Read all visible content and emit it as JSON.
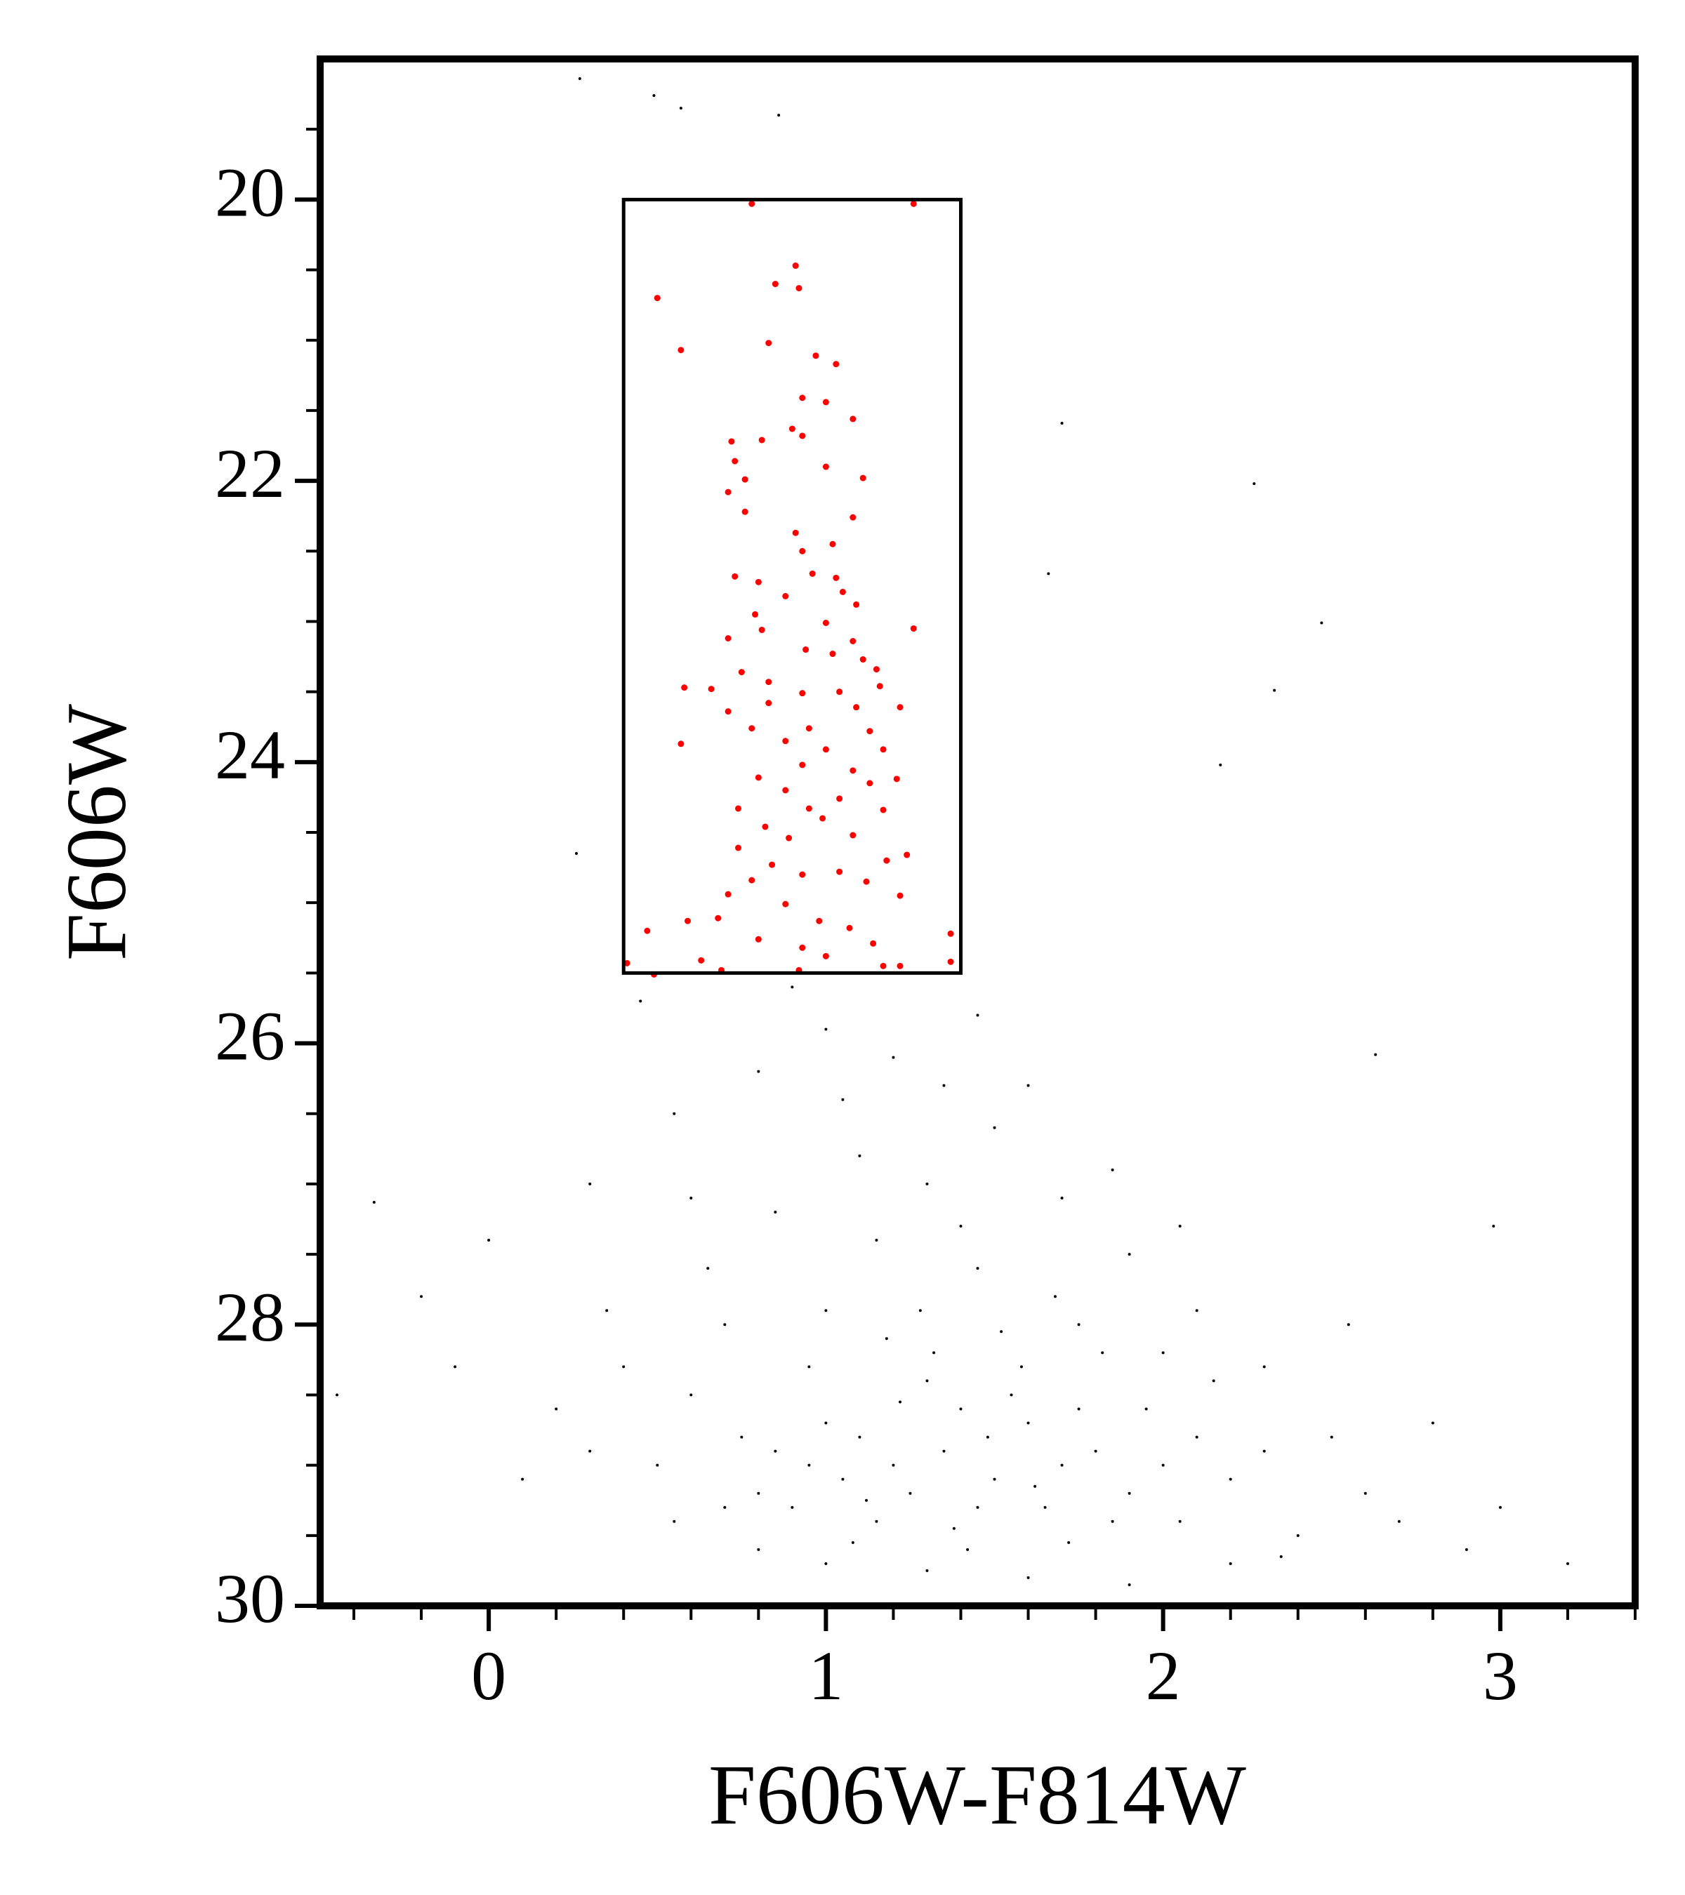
{
  "chart_data": {
    "type": "scatter",
    "xlabel": "F606W-F814W",
    "ylabel": "F606W",
    "xlim": [
      -0.5,
      3.4
    ],
    "ylim": [
      30,
      19
    ],
    "xticks": [
      0,
      1,
      2,
      3
    ],
    "yticks": [
      20,
      22,
      24,
      26,
      28,
      30
    ],
    "xminorticks": [
      -0.4,
      -0.2,
      0.2,
      0.4,
      0.6,
      0.8,
      1.2,
      1.4,
      1.6,
      1.8,
      2.2,
      2.4,
      2.6,
      2.8,
      3.2,
      3.4
    ],
    "yminorticks": [
      19.5,
      20.5,
      21,
      21.5,
      22.5,
      23,
      23.5,
      24.5,
      25,
      25.5,
      26.5,
      27,
      27.5,
      28.5,
      29,
      29.5
    ],
    "box": {
      "x": [
        0.4,
        1.4
      ],
      "y": [
        20,
        25.5
      ],
      "color": "#000000"
    },
    "series": [
      {
        "color": "#000000",
        "x": [
          1.2,
          1.35,
          1.5,
          1.1,
          1.6,
          1.45,
          1.25,
          1.7,
          1.05,
          1.4,
          1.8,
          1.3,
          1.55,
          0.95,
          1.65,
          1.15,
          1.9,
          1.0,
          1.75,
          1.38,
          0.9,
          2.0,
          1.22,
          1.48,
          1.62,
          2.1,
          0.85,
          1.12,
          1.85,
          1.32,
          1.58,
          2.2,
          0.8,
          1.95,
          1.42,
          1.08,
          1.72,
          2.05,
          0.75,
          1.28,
          1.52,
          1.82,
          2.3,
          0.7,
          1.18,
          1.68,
          2.15,
          0.95,
          1.45,
          1.0,
          0.6,
          0.5,
          0.4,
          0.65,
          0.85,
          1.1,
          1.3,
          1.5,
          1.7,
          1.9,
          2.1,
          2.3,
          2.5,
          2.6,
          2.4,
          2.7,
          2.9,
          3.0,
          3.2,
          2.2,
          1.9,
          1.6,
          1.3,
          1.0,
          0.8,
          0.55,
          0.3,
          0.2,
          0.1,
          -0.1,
          -0.2,
          -0.45,
          0.0,
          0.3,
          0.55,
          0.8,
          1.0,
          1.2,
          1.45,
          1.6,
          1.85,
          2.05,
          0.45,
          0.9,
          2.8,
          2.55,
          0.7,
          1.15,
          1.4,
          1.75,
          2.0,
          0.6,
          0.35,
          2.35,
          1.35,
          1.05,
          0.27,
          0.49,
          0.57,
          0.86,
          1.7,
          2.27,
          1.66,
          2.47,
          2.33,
          2.17,
          0.26,
          2.63,
          2.98,
          -0.34
        ],
        "values": [
          29.0,
          28.9,
          29.1,
          28.8,
          28.7,
          29.3,
          29.2,
          29.0,
          29.1,
          28.6,
          28.9,
          28.4,
          28.5,
          29.0,
          29.3,
          29.4,
          29.2,
          28.7,
          28.6,
          29.45,
          29.3,
          29.0,
          28.55,
          28.8,
          29.15,
          28.8,
          28.9,
          29.25,
          29.4,
          28.2,
          28.3,
          29.1,
          29.2,
          28.6,
          29.6,
          29.55,
          29.55,
          29.4,
          28.8,
          27.9,
          28.05,
          28.2,
          28.9,
          29.3,
          28.1,
          27.8,
          28.4,
          28.3,
          27.6,
          27.9,
          28.5,
          29.0,
          28.3,
          27.6,
          27.2,
          26.8,
          27.0,
          26.6,
          27.1,
          27.5,
          27.9,
          28.3,
          28.8,
          29.2,
          29.5,
          29.4,
          29.6,
          29.3,
          29.7,
          29.7,
          29.85,
          29.8,
          29.75,
          29.7,
          29.6,
          29.4,
          28.9,
          28.6,
          29.1,
          28.3,
          27.8,
          28.5,
          27.4,
          27.0,
          26.5,
          26.2,
          25.9,
          26.1,
          25.8,
          26.3,
          26.9,
          27.3,
          25.7,
          25.6,
          28.7,
          28.0,
          28.0,
          27.4,
          27.3,
          28.0,
          28.2,
          27.1,
          27.9,
          29.65,
          26.3,
          26.4,
          19.14,
          19.26,
          19.35,
          19.4,
          21.59,
          22.02,
          22.66,
          23.01,
          23.49,
          24.02,
          24.65,
          26.08,
          27.3,
          27.13
        ]
      },
      {
        "color": "#ff0000",
        "x": [
          0.78,
          1.26,
          0.91,
          0.85,
          0.92,
          0.5,
          0.57,
          0.83,
          0.97,
          1.03,
          0.93,
          1.0,
          1.08,
          0.9,
          0.72,
          0.81,
          0.93,
          0.73,
          1.0,
          0.76,
          0.71,
          1.11,
          0.76,
          1.08,
          0.91,
          1.02,
          0.93,
          0.73,
          0.96,
          1.03,
          0.8,
          1.05,
          0.88,
          1.09,
          0.79,
          1.26,
          1.0,
          0.81,
          0.71,
          1.08,
          1.02,
          0.94,
          1.11,
          1.15,
          0.75,
          0.83,
          0.58,
          0.66,
          1.16,
          1.04,
          0.93,
          1.09,
          1.22,
          0.71,
          0.83,
          0.78,
          0.95,
          1.13,
          0.57,
          0.88,
          1.0,
          1.17,
          0.93,
          1.08,
          0.8,
          1.21,
          1.13,
          0.88,
          1.04,
          0.74,
          0.95,
          1.17,
          0.99,
          0.82,
          1.08,
          0.89,
          0.74,
          1.24,
          1.18,
          0.84,
          1.04,
          0.93,
          0.78,
          1.12,
          1.22,
          0.71,
          0.88,
          0.98,
          1.07,
          0.68,
          0.59,
          0.47,
          0.8,
          0.93,
          1.14,
          1.0,
          0.41,
          0.63,
          1.37,
          1.37,
          1.17,
          1.22,
          0.49,
          0.69,
          0.92
        ],
        "values": [
          20.03,
          20.03,
          20.47,
          20.6,
          20.63,
          20.7,
          21.07,
          21.02,
          21.11,
          21.17,
          21.41,
          21.44,
          21.56,
          21.63,
          21.72,
          21.71,
          21.68,
          21.86,
          21.9,
          21.99,
          22.08,
          21.98,
          22.22,
          22.26,
          22.37,
          22.45,
          22.5,
          22.68,
          22.66,
          22.69,
          22.72,
          22.79,
          22.82,
          22.88,
          22.95,
          23.05,
          23.01,
          23.06,
          23.12,
          23.14,
          23.23,
          23.2,
          23.27,
          23.34,
          23.36,
          23.43,
          23.47,
          23.48,
          23.46,
          23.5,
          23.51,
          23.61,
          23.61,
          23.64,
          23.58,
          23.76,
          23.76,
          23.78,
          23.87,
          23.85,
          23.91,
          23.91,
          24.02,
          24.06,
          24.11,
          24.12,
          24.15,
          24.2,
          24.26,
          24.33,
          24.33,
          24.34,
          24.4,
          24.46,
          24.52,
          24.54,
          24.61,
          24.66,
          24.7,
          24.73,
          24.78,
          24.8,
          24.84,
          24.85,
          24.95,
          24.94,
          25.01,
          25.13,
          25.18,
          25.11,
          25.13,
          25.2,
          25.26,
          25.32,
          25.29,
          25.38,
          25.43,
          25.41,
          25.22,
          25.42,
          25.45,
          25.45,
          25.51,
          25.48,
          25.48
        ]
      }
    ]
  }
}
